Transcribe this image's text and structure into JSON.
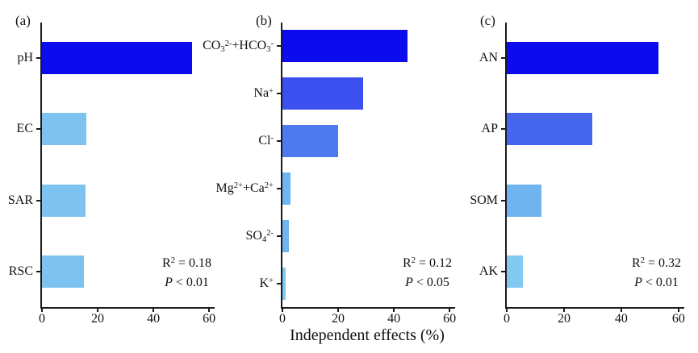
{
  "figure": {
    "xlabel": "Independent effects (%)"
  },
  "chart_data": [
    {
      "type": "bar",
      "orientation": "horizontal",
      "panel_label": "(a)",
      "categories": [
        "pH",
        "EC",
        "SAR",
        "RSC"
      ],
      "values": [
        54,
        16,
        15.5,
        15
      ],
      "bar_colors": [
        "#0b0bee",
        "#7ec3f0",
        "#7ec3f0",
        "#7ec3f0"
      ],
      "annotation": {
        "r2": "R^{2} = 0.18",
        "p": "P < 0.01"
      },
      "xlim": [
        0,
        62
      ],
      "x_ticks": [
        0,
        20,
        40,
        60
      ],
      "xlabel": "Independent effects (%)",
      "grid": false,
      "legend": "none"
    },
    {
      "type": "bar",
      "orientation": "horizontal",
      "panel_label": "(b)",
      "categories": [
        "CO_{3}^{2-}+HCO_{3}^{-}",
        "Na^{+}",
        "Cl^{-}",
        "Mg^{2+}+Ca^{2+}",
        "SO_{4}^{2-}",
        "K^{+}"
      ],
      "values": [
        45,
        29,
        20,
        3,
        2.3,
        1.2
      ],
      "bar_colors": [
        "#0b0bee",
        "#3b50ef",
        "#4f79ef",
        "#6fb5ef",
        "#6fb5ef",
        "#7fc6f1"
      ],
      "annotation": {
        "r2": "R^{2} = 0.12",
        "p": "P < 0.05"
      },
      "xlim": [
        0,
        62
      ],
      "x_ticks": [
        0,
        20,
        40,
        60
      ],
      "xlabel": "Independent effects (%)",
      "grid": false,
      "legend": "none"
    },
    {
      "type": "bar",
      "orientation": "horizontal",
      "panel_label": "(c)",
      "categories": [
        "AN",
        "AP",
        "SOM",
        "AK"
      ],
      "values": [
        53,
        30,
        12,
        5.5
      ],
      "bar_colors": [
        "#0b0bee",
        "#4467ee",
        "#6fb3ef",
        "#83caf2"
      ],
      "annotation": {
        "r2": "R^{2} = 0.32",
        "p": "P < 0.01"
      },
      "xlim": [
        0,
        62
      ],
      "x_ticks": [
        0,
        20,
        40,
        60
      ],
      "xlabel": "Independent effects (%)",
      "grid": false,
      "legend": "none"
    }
  ],
  "style": {
    "axis_color": "#1a1a1a",
    "text_color": "#111111",
    "background": "#ffffff"
  }
}
